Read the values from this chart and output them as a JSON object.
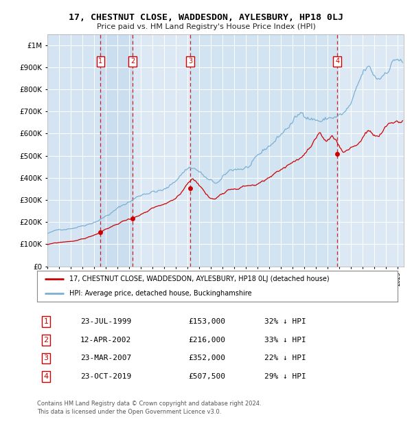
{
  "title": "17, CHESTNUT CLOSE, WADDESDON, AYLESBURY, HP18 0LJ",
  "subtitle": "Price paid vs. HM Land Registry's House Price Index (HPI)",
  "legend_label_red": "17, CHESTNUT CLOSE, WADDESDON, AYLESBURY, HP18 0LJ (detached house)",
  "legend_label_blue": "HPI: Average price, detached house, Buckinghamshire",
  "footer1": "Contains HM Land Registry data © Crown copyright and database right 2024.",
  "footer2": "This data is licensed under the Open Government Licence v3.0.",
  "sales": [
    {
      "num": 1,
      "date": "23-JUL-1999",
      "price": 153000,
      "pct": "32%",
      "year": 1999.55
    },
    {
      "num": 2,
      "date": "12-APR-2002",
      "price": 216000,
      "pct": "33%",
      "year": 2002.28
    },
    {
      "num": 3,
      "date": "23-MAR-2007",
      "price": 352000,
      "pct": "22%",
      "year": 2007.22
    },
    {
      "num": 4,
      "date": "23-OCT-2019",
      "price": 507500,
      "pct": "29%",
      "year": 2019.81
    }
  ],
  "ylim": [
    0,
    1050000
  ],
  "xlim_start": 1995.0,
  "xlim_end": 2025.5,
  "background_color": "#ffffff",
  "plot_bg_color": "#dce9f5",
  "grid_color": "#ffffff",
  "red_color": "#cc0000",
  "blue_color": "#7ab0d4",
  "dashed_color": "#cc0000"
}
